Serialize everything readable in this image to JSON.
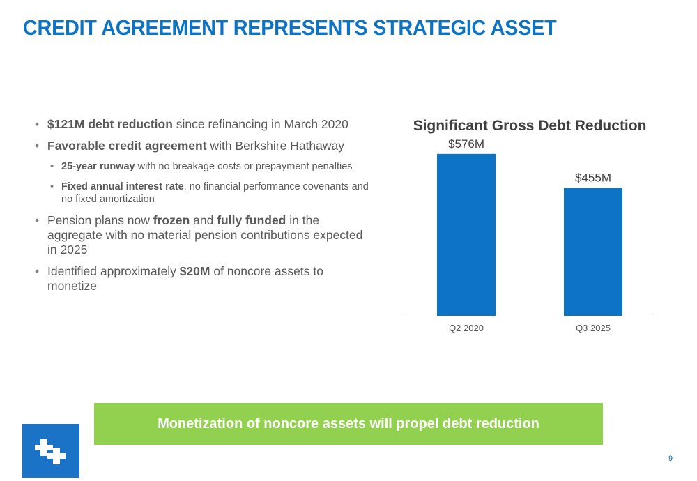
{
  "slide": {
    "title": "CREDIT AGREEMENT REPRESENTS STRATEGIC ASSET",
    "page_number": "9"
  },
  "bullets": {
    "b1": {
      "bold": "$121M debt reduction",
      "rest": " since refinancing in March 2020"
    },
    "b2": {
      "bold": "Favorable credit agreement",
      "rest": " with Berkshire Hathaway"
    },
    "b2a": {
      "bold": "25-year runway",
      "rest": " with no breakage costs or prepayment penalties"
    },
    "b2b": {
      "bold": "Fixed annual interest rate",
      "rest": ", no financial performance covenants and no fixed amortization"
    },
    "b3": {
      "t1": "Pension plans now ",
      "bold1": "frozen",
      "t2": " and ",
      "bold2": "fully funded",
      "t3": " in the aggregate with no material pension contributions expected in 2025"
    },
    "b4": {
      "t1": "Identified approximately ",
      "bold": "$20M",
      "t2": " of noncore assets to monetize"
    }
  },
  "chart_data": {
    "type": "bar",
    "title": "Significant Gross Debt Reduction",
    "categories": [
      "Q2 2020",
      "Q3 2025"
    ],
    "values": [
      576,
      455
    ],
    "data_labels": [
      "$576M",
      "$455M"
    ],
    "unit": "$M",
    "ylim": [
      0,
      650
    ],
    "grid": false,
    "bar_color": "#0d74c5"
  },
  "banner": {
    "text": "Monetization of noncore assets will propel debt reduction",
    "color": "#92d050"
  },
  "logo": {
    "icon": "company-logo-icon",
    "color": "#1a73c6"
  }
}
